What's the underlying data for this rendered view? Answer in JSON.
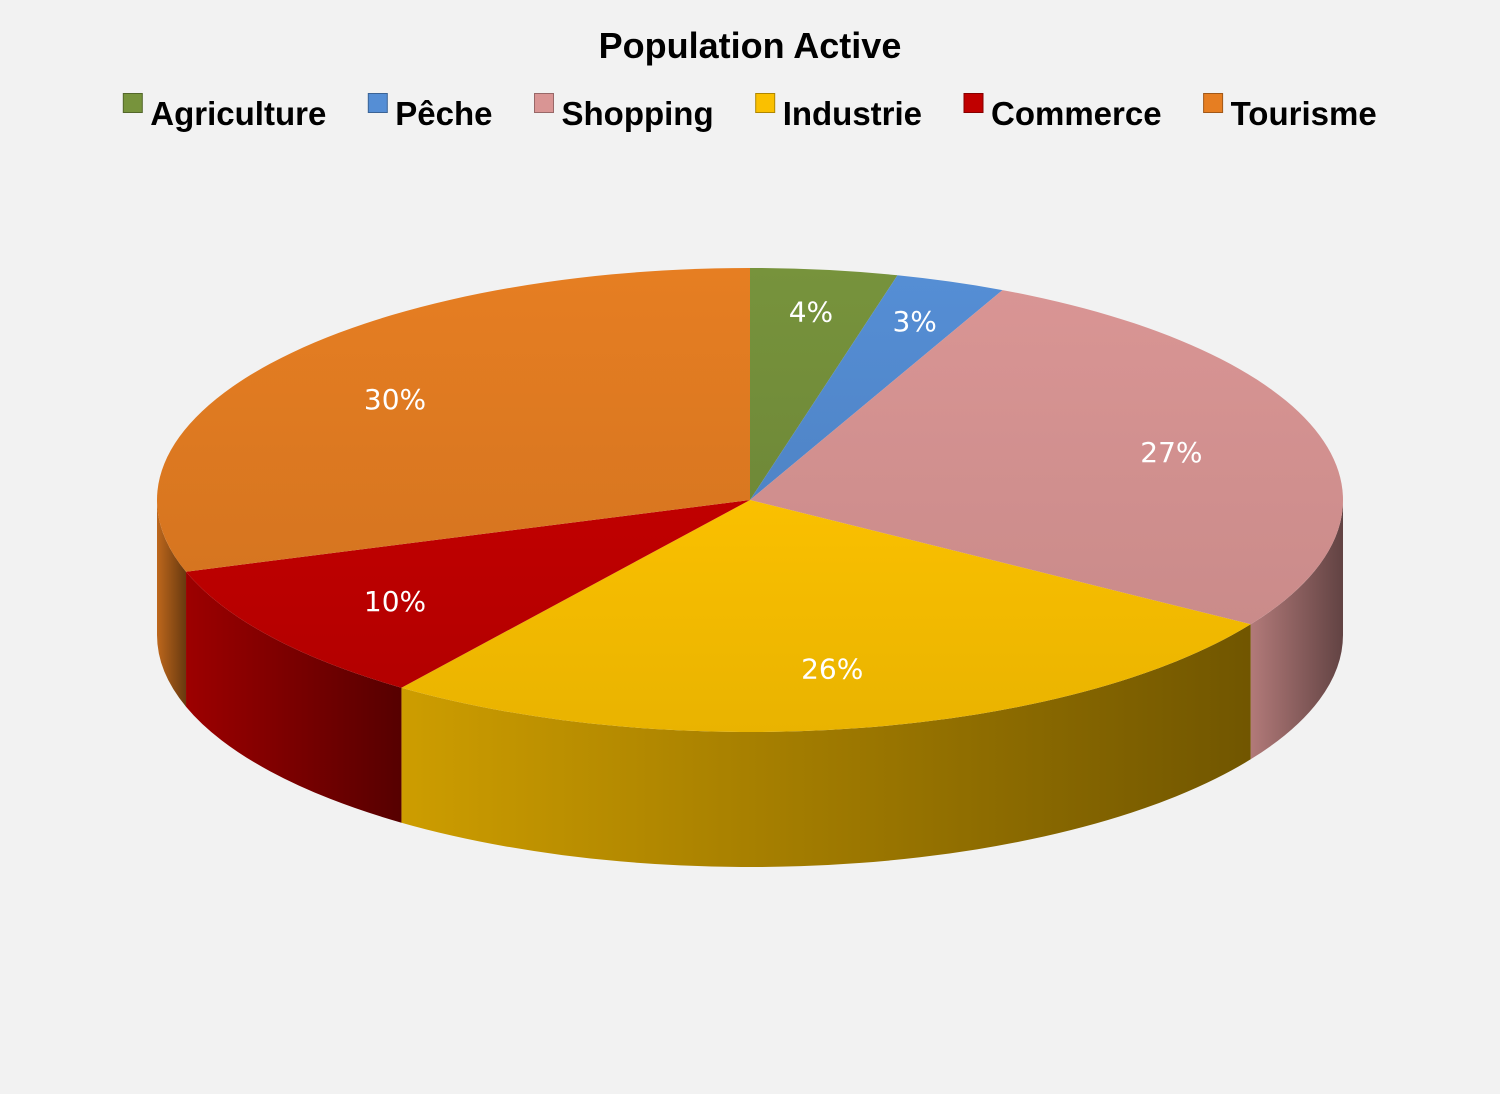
{
  "chart_data": {
    "type": "pie",
    "title": "Population Active",
    "legend_position": "top",
    "categories": [
      "Agriculture",
      "Pêche",
      "Shopping",
      "Industrie",
      "Commerce",
      "Tourisme"
    ],
    "values": [
      4,
      3,
      27,
      26,
      10,
      30
    ],
    "data_labels": [
      "4%",
      "3%",
      "27%",
      "26%",
      "10%",
      "30%"
    ],
    "colors": [
      "#77933c",
      "#558ed5",
      "#d99594",
      "#fac000",
      "#c00000",
      "#e67e22"
    ],
    "style": "3d"
  }
}
